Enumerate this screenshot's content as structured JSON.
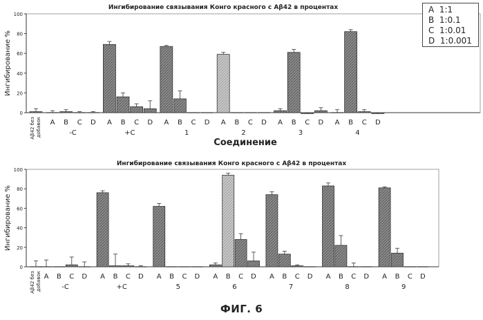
{
  "figure_label": "ФИГ. 6",
  "legend": [
    {
      "letter": "A",
      "ratio": "1:1"
    },
    {
      "letter": "B",
      "ratio": "1:0.1"
    },
    {
      "letter": "C",
      "ratio": "1:0.01"
    },
    {
      "letter": "D",
      "ratio": "1:0.001"
    }
  ],
  "chart_data": [
    {
      "type": "bar",
      "title": "Ингибирование связывания Конго красного   с Aβ42 в процентах",
      "ylabel": "Ингибирование %",
      "xlabel": "Соединение",
      "ylim": [
        0,
        100
      ],
      "yticks": [
        "0",
        "20",
        "40",
        "60",
        "80",
        "100"
      ],
      "baseline_label": "Aβ42 без добавок",
      "baseline": {
        "value": 1,
        "error": 3
      },
      "groups": [
        {
          "name": "-C",
          "letters": [
            "A",
            "B",
            "C",
            "D"
          ],
          "values": [
            0,
            1,
            0,
            0
          ],
          "errors": [
            2,
            2,
            1,
            1
          ]
        },
        {
          "name": "+C",
          "letters": [
            "A",
            "B",
            "C",
            "D"
          ],
          "values": [
            69,
            16,
            6,
            4
          ],
          "errors": [
            3,
            4,
            3,
            8
          ]
        },
        {
          "name": "1",
          "letters": [
            "A",
            "B",
            "C",
            "D"
          ],
          "values": [
            67,
            14,
            0,
            0
          ],
          "errors": [
            1,
            8,
            0,
            0
          ]
        },
        {
          "name": "2",
          "letters": [
            "A",
            "B",
            "C",
            "D"
          ],
          "values": [
            59,
            0,
            0,
            0
          ],
          "errors": [
            2,
            0,
            0,
            0
          ]
        },
        {
          "name": "3",
          "letters": [
            "A",
            "B",
            "C",
            "D"
          ],
          "values": [
            2,
            61,
            -1,
            2
          ],
          "errors": [
            2,
            3,
            1,
            3
          ]
        },
        {
          "name": "4",
          "letters": [
            "A",
            "B",
            "C",
            "D"
          ],
          "values": [
            0,
            82,
            1,
            -1
          ],
          "errors": [
            3,
            2,
            2,
            1
          ]
        }
      ]
    },
    {
      "type": "bar",
      "title": "Ингибирование связывания Конго красного   с Aβ42 в процентах",
      "ylabel": "Ингибирование %",
      "xlabel": "",
      "ylim": [
        0,
        100
      ],
      "yticks": [
        "0",
        "20",
        "40",
        "60",
        "80",
        "100"
      ],
      "baseline_label": "Aβ42 без добавок",
      "baseline": {
        "value": 0,
        "error": 6
      },
      "groups": [
        {
          "name": "-C",
          "letters": [
            "A",
            "B",
            "C",
            "D"
          ],
          "values": [
            0,
            0,
            2,
            0
          ],
          "errors": [
            7,
            0,
            8,
            5
          ]
        },
        {
          "name": "+C",
          "letters": [
            "A",
            "B",
            "C",
            "D"
          ],
          "values": [
            76,
            1,
            1,
            0
          ],
          "errors": [
            2,
            12,
            2,
            1
          ]
        },
        {
          "name": "5",
          "letters": [
            "A",
            "B",
            "C",
            "D"
          ],
          "values": [
            62,
            0,
            0,
            0
          ],
          "errors": [
            3,
            0,
            0,
            0
          ]
        },
        {
          "name": "6",
          "letters": [
            "A",
            "B",
            "C",
            "D"
          ],
          "values": [
            2,
            94,
            28,
            6
          ],
          "errors": [
            2,
            2,
            6,
            9
          ]
        },
        {
          "name": "7",
          "letters": [
            "A",
            "B",
            "C",
            "D"
          ],
          "values": [
            74,
            13,
            1,
            0
          ],
          "errors": [
            3,
            3,
            1,
            0
          ]
        },
        {
          "name": "8",
          "letters": [
            "A",
            "B",
            "C",
            "D"
          ],
          "values": [
            83,
            22,
            0,
            0
          ],
          "errors": [
            3,
            10,
            4,
            0
          ]
        },
        {
          "name": "9",
          "letters": [
            "A",
            "B",
            "C",
            "D"
          ],
          "values": [
            81,
            14,
            0,
            0
          ],
          "errors": [
            1,
            5,
            0,
            0
          ]
        }
      ]
    }
  ]
}
